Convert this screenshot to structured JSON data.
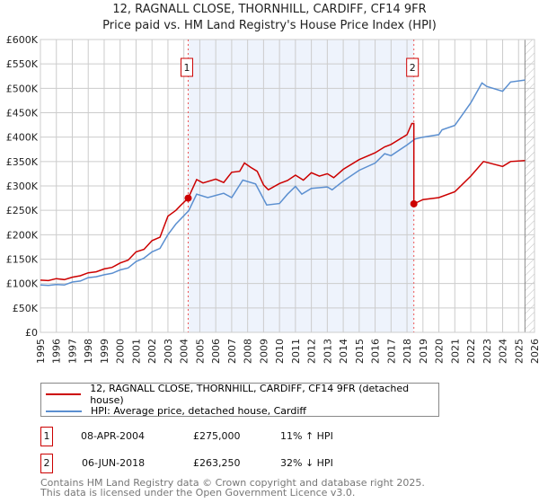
{
  "chart_data": {
    "type": "line",
    "title": "12, RAGNALL CLOSE, THORNHILL, CARDIFF, CF14 9FR",
    "subtitle": "Price paid vs. HM Land Registry's House Price Index (HPI)",
    "xlim": [
      1995,
      2026
    ],
    "ylim": [
      0,
      600000
    ],
    "x_ticks": [
      "1995",
      "1996",
      "1997",
      "1998",
      "1999",
      "2000",
      "2001",
      "2002",
      "2003",
      "2004",
      "2005",
      "2006",
      "2007",
      "2008",
      "2009",
      "2010",
      "2011",
      "2012",
      "2013",
      "2014",
      "2015",
      "2016",
      "2017",
      "2018",
      "2019",
      "2020",
      "2021",
      "2022",
      "2023",
      "2024",
      "2025",
      "2026"
    ],
    "y_ticks": [
      {
        "v": 0,
        "label": "£0"
      },
      {
        "v": 50000,
        "label": "£50K"
      },
      {
        "v": 100000,
        "label": "£100K"
      },
      {
        "v": 150000,
        "label": "£150K"
      },
      {
        "v": 200000,
        "label": "£200K"
      },
      {
        "v": 250000,
        "label": "£250K"
      },
      {
        "v": 300000,
        "label": "£300K"
      },
      {
        "v": 350000,
        "label": "£350K"
      },
      {
        "v": 400000,
        "label": "£400K"
      },
      {
        "v": 450000,
        "label": "£450K"
      },
      {
        "v": 500000,
        "label": "£500K"
      },
      {
        "v": 550000,
        "label": "£550K"
      },
      {
        "v": 600000,
        "label": "£600K"
      }
    ],
    "grid": true,
    "shaded_range": [
      2004.27,
      2018.43
    ],
    "hatched_from": 2025.4,
    "colors": {
      "property": "#cc0000",
      "hpi": "#5b8fd0",
      "shade": "#eef3fc"
    },
    "series": [
      {
        "name": "12, RAGNALL CLOSE, THORNHILL, CARDIFF, CF14 9FR (detached house)",
        "color": "#cc0000",
        "x": [
          1995,
          1995.5,
          1996,
          1996.5,
          1997,
          1997.5,
          1998,
          1998.5,
          1999,
          1999.5,
          2000,
          2000.5,
          2001,
          2001.5,
          2002,
          2002.5,
          2003,
          2003.5,
          2003.8,
          2004.27,
          2004.8,
          2005.2,
          2006,
          2006.5,
          2007,
          2007.5,
          2007.8,
          2008.2,
          2008.6,
          2009,
          2009.3,
          2010,
          2010.5,
          2011,
          2011.5,
          2012,
          2012.5,
          2013,
          2013.4,
          2014,
          2015,
          2016,
          2016.6,
          2017,
          2018,
          2018.3,
          2018.43,
          2018.43,
          2019,
          2020,
          2021,
          2022,
          2022.8,
          2024,
          2024.5,
          2025.4
        ],
        "y": [
          107000,
          106000,
          110000,
          108000,
          113000,
          116000,
          122000,
          124000,
          130000,
          133000,
          142000,
          148000,
          165000,
          170000,
          188000,
          195000,
          238000,
          250000,
          260000,
          275000,
          313000,
          306000,
          314000,
          307000,
          328000,
          330000,
          347000,
          338000,
          330000,
          302000,
          292000,
          305000,
          311000,
          322000,
          312000,
          327000,
          320000,
          325000,
          317000,
          334000,
          354000,
          368000,
          380000,
          385000,
          405000,
          428000,
          428000,
          263250,
          272000,
          276000,
          288000,
          320000,
          350000,
          340000,
          350000,
          352000
        ]
      },
      {
        "name": "HPI: Average price, detached house, Cardiff",
        "color": "#5b8fd0",
        "x": [
          1995,
          1995.5,
          1996,
          1996.5,
          1997,
          1997.5,
          1998,
          1998.5,
          1999,
          1999.5,
          2000,
          2000.5,
          2001,
          2001.5,
          2002,
          2002.5,
          2003,
          2003.5,
          2004.3,
          2004.8,
          2005.5,
          2006.5,
          2007,
          2007.7,
          2008.5,
          2009.2,
          2010,
          2010.5,
          2011,
          2011.4,
          2012,
          2013,
          2013.3,
          2014,
          2015,
          2016,
          2016.6,
          2017,
          2018,
          2018.5,
          2019,
          2020,
          2020.2,
          2021,
          2022,
          2022.7,
          2023,
          2024,
          2024.5,
          2025.4
        ],
        "y": [
          97000,
          96000,
          98000,
          97000,
          103000,
          105000,
          112000,
          114000,
          118000,
          121000,
          128000,
          132000,
          145000,
          152000,
          165000,
          172000,
          200000,
          222000,
          249000,
          283000,
          276000,
          285000,
          276000,
          312000,
          304000,
          261000,
          264000,
          283000,
          299000,
          283000,
          295000,
          298000,
          292000,
          310000,
          332000,
          347000,
          366000,
          362000,
          384000,
          396000,
          400000,
          405000,
          415000,
          424000,
          470000,
          511000,
          504000,
          494000,
          513000,
          517000
        ]
      }
    ],
    "sales": [
      {
        "label": "1",
        "x": 2004.27,
        "price": 275000,
        "date": "08-APR-2004",
        "price_text": "£275,000",
        "hpi_text": "11% ↑ HPI"
      },
      {
        "label": "2",
        "x": 2018.43,
        "price": 263250,
        "date": "06-JUN-2018",
        "price_text": "£263,250",
        "hpi_text": "32% ↓ HPI"
      }
    ]
  },
  "footer": {
    "line1": "Contains HM Land Registry data © Crown copyright and database right 2025.",
    "line2": "This data is licensed under the Open Government Licence v3.0."
  }
}
